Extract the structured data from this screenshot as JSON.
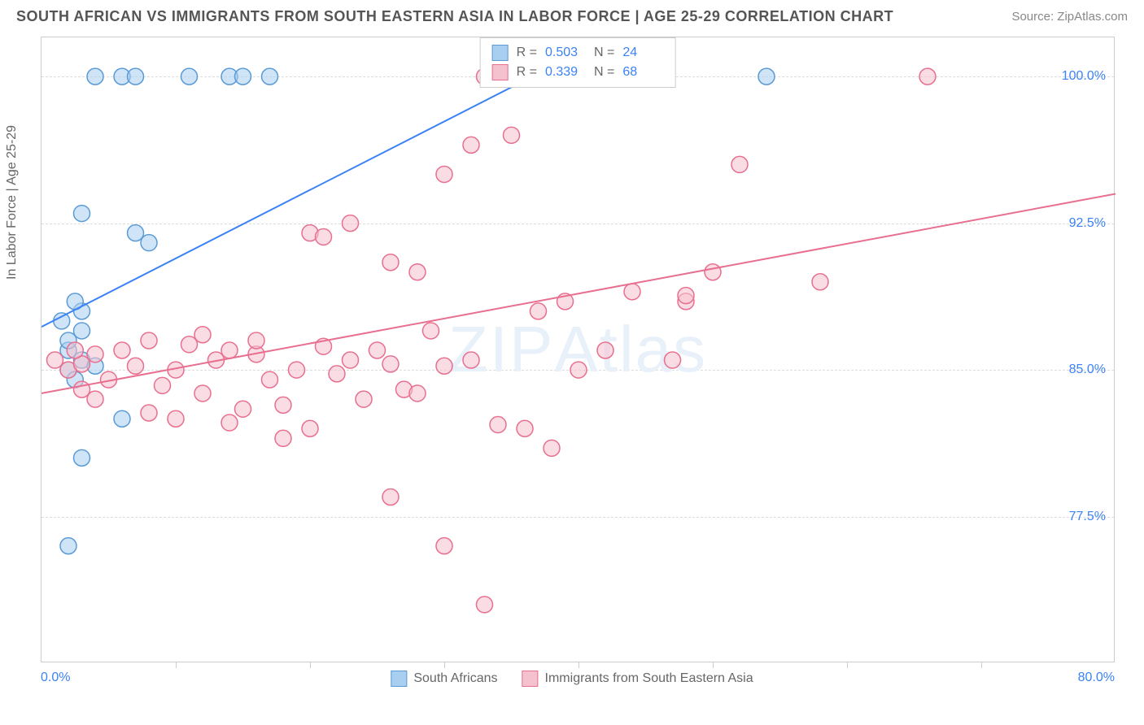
{
  "header": {
    "title": "SOUTH AFRICAN VS IMMIGRANTS FROM SOUTH EASTERN ASIA IN LABOR FORCE | AGE 25-29 CORRELATION CHART",
    "source": "Source: ZipAtlas.com"
  },
  "chart": {
    "type": "scatter",
    "y_axis_title": "In Labor Force | Age 25-29",
    "x_range": [
      0,
      80
    ],
    "y_range": [
      70,
      102
    ],
    "y_ticks": [
      77.5,
      85.0,
      92.5,
      100.0
    ],
    "y_tick_labels": [
      "77.5%",
      "85.0%",
      "92.5%",
      "100.0%"
    ],
    "x_ticks": [
      10,
      20,
      30,
      40,
      50,
      60,
      70
    ],
    "x_label_min": "0.0%",
    "x_label_max": "80.0%",
    "background_color": "#ffffff",
    "grid_color": "#dddddd",
    "border_color": "#cccccc",
    "marker_radius": 10,
    "marker_stroke_width": 1.5,
    "line_width": 2,
    "series": [
      {
        "name": "South Africans",
        "color_fill": "#a8cef0",
        "color_stroke": "#5b9bd5",
        "line_color": "#3b82f6",
        "r_value": "0.503",
        "n_value": "24",
        "trend_line": {
          "x1": 0,
          "y1": 87.2,
          "x2": 38,
          "y2": 100.5
        },
        "points": [
          [
            2,
            85
          ],
          [
            3,
            85.5
          ],
          [
            2,
            86
          ],
          [
            1.5,
            87.5
          ],
          [
            3,
            88
          ],
          [
            2.5,
            88.5
          ],
          [
            4,
            100
          ],
          [
            6,
            100
          ],
          [
            7,
            100
          ],
          [
            11,
            100
          ],
          [
            14,
            100
          ],
          [
            15,
            100
          ],
          [
            17,
            100
          ],
          [
            3,
            80.5
          ],
          [
            2,
            76
          ],
          [
            6,
            82.5
          ],
          [
            3,
            93
          ],
          [
            8,
            91.5
          ],
          [
            4,
            85.2
          ],
          [
            2.5,
            84.5
          ],
          [
            54,
            100
          ],
          [
            7,
            92
          ],
          [
            2,
            86.5
          ],
          [
            3,
            87
          ]
        ]
      },
      {
        "name": "Immigrants from South Eastern Asia",
        "color_fill": "#f5c1ce",
        "color_stroke": "#e86f8f",
        "line_color": "#e86f8f",
        "r_value": "0.339",
        "n_value": "68",
        "trend_line": {
          "x1": 0,
          "y1": 83.8,
          "x2": 80,
          "y2": 94.0
        },
        "points": [
          [
            1,
            85.5
          ],
          [
            2,
            85
          ],
          [
            3,
            85.3
          ],
          [
            2.5,
            86
          ],
          [
            4,
            85.8
          ],
          [
            5,
            84.5
          ],
          [
            3,
            84
          ],
          [
            6,
            86
          ],
          [
            7,
            85.2
          ],
          [
            4,
            83.5
          ],
          [
            8,
            86.5
          ],
          [
            9,
            84.2
          ],
          [
            10,
            85
          ],
          [
            11,
            86.3
          ],
          [
            12,
            83.8
          ],
          [
            10,
            82.5
          ],
          [
            13,
            85.5
          ],
          [
            14,
            86
          ],
          [
            15,
            83
          ],
          [
            16,
            85.8
          ],
          [
            17,
            84.5
          ],
          [
            18,
            83.2
          ],
          [
            19,
            85
          ],
          [
            20,
            82
          ],
          [
            18,
            81.5
          ],
          [
            21,
            86.2
          ],
          [
            22,
            84.8
          ],
          [
            23,
            85.5
          ],
          [
            24,
            83.5
          ],
          [
            25,
            86
          ],
          [
            8,
            82.8
          ],
          [
            26,
            85.3
          ],
          [
            27,
            84
          ],
          [
            28,
            83.8
          ],
          [
            29,
            87
          ],
          [
            26,
            78.5
          ],
          [
            30,
            85.2
          ],
          [
            20,
            92
          ],
          [
            23,
            92.5
          ],
          [
            26,
            90.5
          ],
          [
            28,
            90
          ],
          [
            30,
            95
          ],
          [
            32,
            96.5
          ],
          [
            33,
            73
          ],
          [
            35,
            97
          ],
          [
            37,
            88
          ],
          [
            39,
            88.5
          ],
          [
            40,
            85
          ],
          [
            42,
            86
          ],
          [
            44,
            89
          ],
          [
            47,
            85.5
          ],
          [
            48,
            88.5
          ],
          [
            36,
            82
          ],
          [
            32,
            85.5
          ],
          [
            34,
            82.2
          ],
          [
            52,
            95.5
          ],
          [
            58,
            89.5
          ],
          [
            38,
            81
          ],
          [
            30,
            76
          ],
          [
            33,
            100
          ],
          [
            43,
            100
          ],
          [
            48,
            88.8
          ],
          [
            66,
            100
          ],
          [
            14,
            82.3
          ],
          [
            16,
            86.5
          ],
          [
            12,
            86.8
          ],
          [
            21,
            91.8
          ],
          [
            50,
            90
          ]
        ]
      }
    ],
    "legend_top": {
      "r_label": "R =",
      "n_label": "N ="
    },
    "legend_bottom": [
      {
        "swatch_fill": "#a8cef0",
        "swatch_stroke": "#5b9bd5",
        "label": "South Africans"
      },
      {
        "swatch_fill": "#f5c1ce",
        "swatch_stroke": "#e86f8f",
        "label": "Immigrants from South Eastern Asia"
      }
    ],
    "watermark": {
      "part1": "ZIP",
      "part2": "Atlas"
    }
  }
}
